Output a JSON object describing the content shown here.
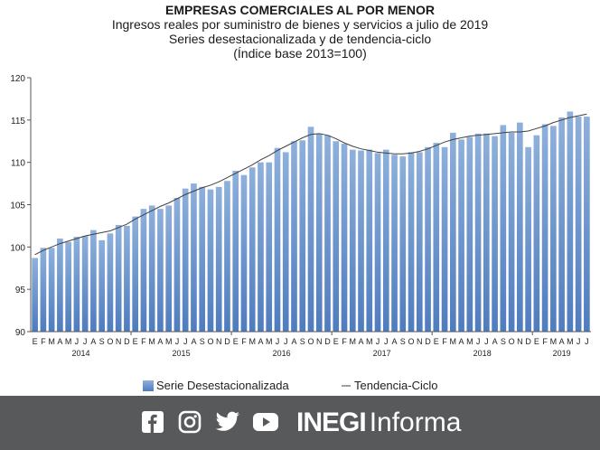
{
  "title": "EMPRESAS COMERCIALES AL POR MENOR",
  "subtitle_lines": [
    "Ingresos reales por suministro de bienes  y servicios  a julio de 2019",
    "Series desestacionalizada  y de tendencia-ciclo",
    "(Índice base 2013=100)"
  ],
  "footer": {
    "brand_bold": "INEGI",
    "brand_light": "Informa",
    "social_icons": [
      "facebook-icon",
      "instagram-icon",
      "twitter-icon",
      "youtube-icon"
    ]
  },
  "colors": {
    "bar": "#5b86c1",
    "bar_gradient_top": "#8eb0db",
    "trend_line": "#404040",
    "footer_bg": "#58595b"
  },
  "chart_data": {
    "type": "bar",
    "ylim": [
      90,
      120
    ],
    "yticks": [
      90,
      95,
      100,
      105,
      110,
      115,
      120
    ],
    "grid": false,
    "legend_position": "bottom",
    "month_labels": [
      "E",
      "F",
      "M",
      "A",
      "M",
      "J",
      "J",
      "A",
      "S",
      "O",
      "N",
      "D",
      "E",
      "F",
      "M",
      "A",
      "M",
      "J",
      "J",
      "A",
      "S",
      "O",
      "N",
      "D",
      "E",
      "F",
      "M",
      "A",
      "M",
      "J",
      "J",
      "A",
      "S",
      "O",
      "N",
      "D",
      "E",
      "F",
      "M",
      "A",
      "M",
      "J",
      "J",
      "A",
      "S",
      "O",
      "N",
      "D",
      "E",
      "F",
      "M",
      "A",
      "M",
      "J",
      "J",
      "A",
      "S",
      "O",
      "N",
      "D",
      "E",
      "F",
      "M",
      "A",
      "M",
      "J",
      "J"
    ],
    "year_labels": [
      {
        "label": "2014",
        "center_index": 5.5
      },
      {
        "label": "2015",
        "center_index": 17.5
      },
      {
        "label": "2016",
        "center_index": 29.5
      },
      {
        "label": "2017",
        "center_index": 41.5
      },
      {
        "label": "2018",
        "center_index": 53.5
      },
      {
        "label": "2019",
        "center_index": 63
      }
    ],
    "series": [
      {
        "name": "Serie Desestacionalizada",
        "kind": "bar",
        "values": [
          98.7,
          99.9,
          99.9,
          101.0,
          100.6,
          101.2,
          101.3,
          102.0,
          100.8,
          101.6,
          102.6,
          102.5,
          103.6,
          104.5,
          104.9,
          104.5,
          104.9,
          105.8,
          106.9,
          107.5,
          107.1,
          106.8,
          107.1,
          107.8,
          109.0,
          108.5,
          109.4,
          110.0,
          110.0,
          111.7,
          111.2,
          112.5,
          112.6,
          114.2,
          113.4,
          113.2,
          112.5,
          112.2,
          111.5,
          111.4,
          111.5,
          111.1,
          111.5,
          110.9,
          110.7,
          111.2,
          111.2,
          111.8,
          112.3,
          111.8,
          113.5,
          112.7,
          113.0,
          113.4,
          113.4,
          113.1,
          114.4,
          113.5,
          114.7,
          111.8,
          113.2,
          114.5,
          114.3,
          115.3,
          116.0,
          115.4,
          115.4
        ]
      },
      {
        "name": "Tendencia-Ciclo",
        "kind": "line",
        "values": [
          99.1,
          99.6,
          100.0,
          100.4,
          100.7,
          101.0,
          101.3,
          101.5,
          101.7,
          101.9,
          102.3,
          102.7,
          103.3,
          103.8,
          104.3,
          104.8,
          105.2,
          105.7,
          106.2,
          106.6,
          107.0,
          107.3,
          107.7,
          108.2,
          108.7,
          109.2,
          109.7,
          110.3,
          110.8,
          111.4,
          111.9,
          112.4,
          112.9,
          113.3,
          113.4,
          113.2,
          112.8,
          112.3,
          111.9,
          111.6,
          111.4,
          111.2,
          111.1,
          111.0,
          111.0,
          111.1,
          111.3,
          111.6,
          112.0,
          112.4,
          112.7,
          112.9,
          113.1,
          113.2,
          113.3,
          113.4,
          113.5,
          113.6,
          113.6,
          113.7,
          114.0,
          114.3,
          114.7,
          115.0,
          115.3,
          115.5,
          115.7
        ]
      }
    ]
  }
}
